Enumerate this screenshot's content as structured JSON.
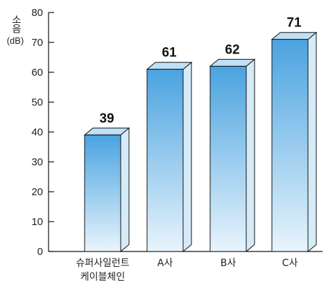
{
  "chart_data": {
    "type": "bar",
    "categories": [
      "슈퍼사일런트\n케이블체인",
      "A사",
      "B사",
      "C사"
    ],
    "values": [
      39,
      61,
      62,
      71
    ],
    "ylabel": "소음",
    "yunit": "(dB)",
    "ylim": [
      0,
      80
    ],
    "yticks": [
      0,
      10,
      20,
      30,
      40,
      50,
      60,
      70,
      80
    ],
    "grid": false,
    "colors": {
      "bar_top": "#4aa3e0",
      "bar_bottom": "#e8f4fc",
      "bar_side": "#d6ebf8",
      "bar_top_face": "#bfe0f6",
      "outline": "#111111"
    }
  }
}
